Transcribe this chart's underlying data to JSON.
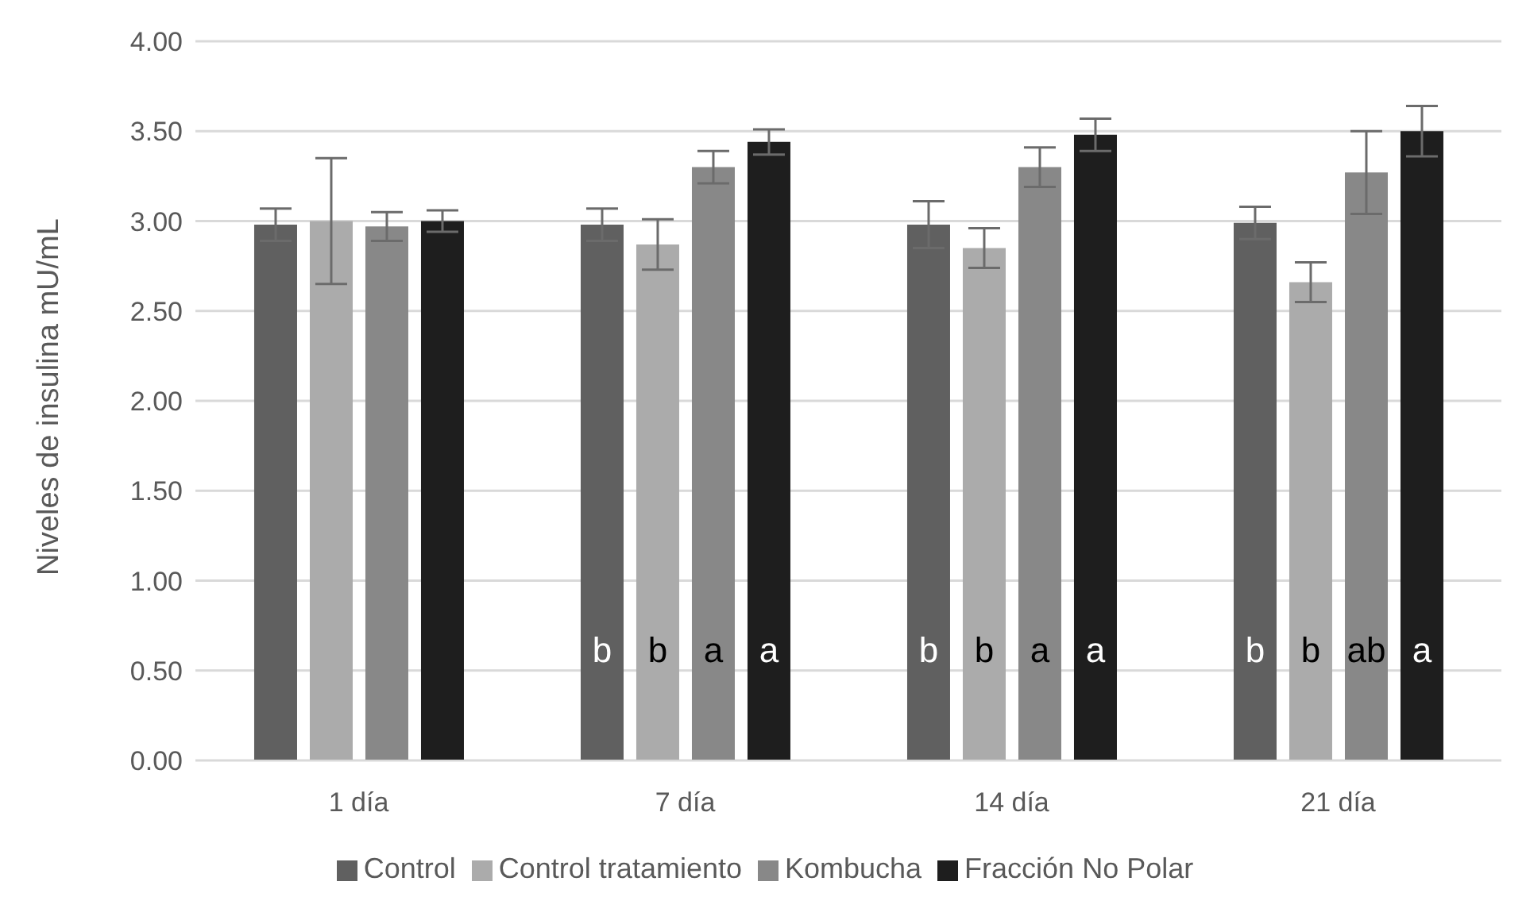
{
  "chart_data": {
    "type": "bar",
    "ylabel": "Niveles de insulina mU/mL",
    "categories": [
      "1 día",
      "7 día",
      "14 día",
      "21 día"
    ],
    "series": [
      {
        "name": "Control",
        "color": "#606060",
        "values": [
          2.98,
          2.98,
          2.98,
          2.99
        ],
        "errors": [
          0.09,
          0.09,
          0.13,
          0.09
        ],
        "value_labels": [
          null,
          "b",
          "b",
          "b"
        ]
      },
      {
        "name": "Control tratamiento",
        "color": "#ababab",
        "values": [
          3.0,
          2.87,
          2.85,
          2.66
        ],
        "errors": [
          0.35,
          0.14,
          0.11,
          0.11
        ],
        "value_labels": [
          null,
          "b",
          "b",
          "b"
        ]
      },
      {
        "name": "Kombucha",
        "color": "#888888",
        "values": [
          2.97,
          3.3,
          3.3,
          3.27
        ],
        "errors": [
          0.08,
          0.09,
          0.11,
          0.23
        ],
        "value_labels": [
          null,
          "a",
          "a",
          "ab"
        ]
      },
      {
        "name": "Fracción No Polar",
        "color": "#1e1e1e",
        "values": [
          3.0,
          3.44,
          3.48,
          3.5
        ],
        "errors": [
          0.06,
          0.07,
          0.09,
          0.14
        ],
        "value_labels": [
          null,
          "a",
          "a",
          "a"
        ]
      }
    ],
    "ylim": [
      0,
      4
    ],
    "yticks": [
      {
        "value": 0,
        "label": "0.00"
      },
      {
        "value": 0.5,
        "label": "0.50"
      },
      {
        "value": 1,
        "label": "1.00"
      },
      {
        "value": 1.5,
        "label": "1.50"
      },
      {
        "value": 2,
        "label": "2.00"
      },
      {
        "value": 2.5,
        "label": "2.50"
      },
      {
        "value": 3,
        "label": "3.00"
      },
      {
        "value": 3.5,
        "label": "3.50"
      },
      {
        "value": 4,
        "label": "4.00"
      }
    ],
    "grid": "y",
    "legend": "bottom"
  }
}
